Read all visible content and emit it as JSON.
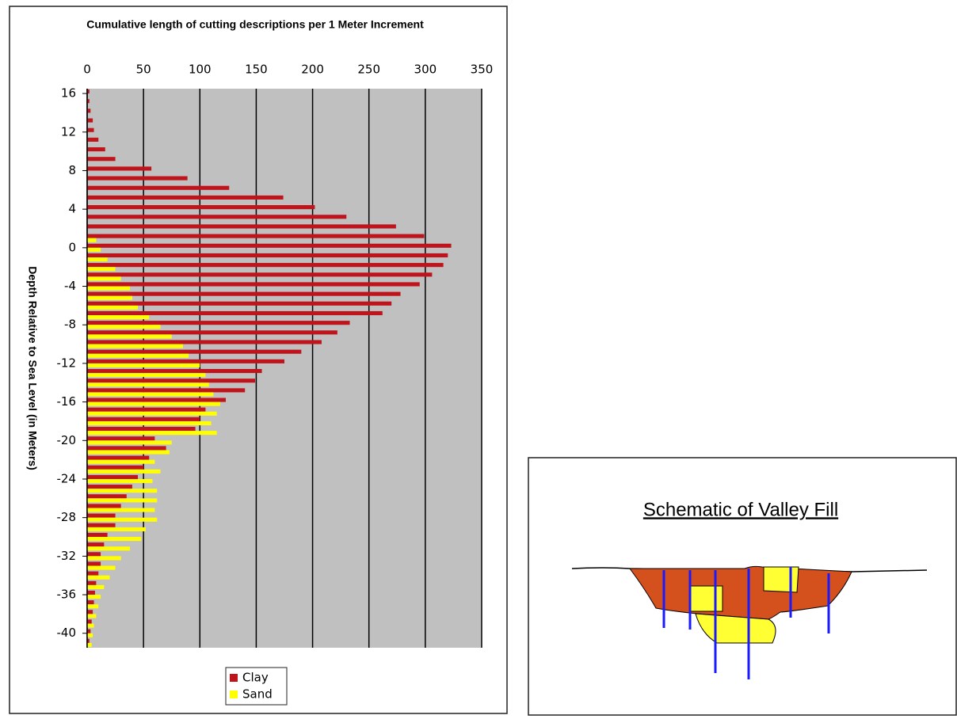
{
  "chart_data": {
    "type": "hbar",
    "title": "Cumulative length of cutting descriptions per 1 Meter Increment",
    "y_label": "Depth Relative to Sea Level (in Meters)",
    "y": [
      16,
      15,
      14,
      13,
      12,
      11,
      10,
      9,
      8,
      7,
      6,
      5,
      4,
      3,
      2,
      1,
      0,
      -1,
      -2,
      -3,
      -4,
      -5,
      -6,
      -7,
      -8,
      -9,
      -10,
      -11,
      -12,
      -13,
      -14,
      -15,
      -16,
      -17,
      -18,
      -19,
      -20,
      -21,
      -22,
      -23,
      -24,
      -25,
      -26,
      -27,
      -28,
      -29,
      -30,
      -31,
      -32,
      -33,
      -34,
      -35,
      -36,
      -37,
      -38,
      -39,
      -40,
      -41
    ],
    "series": [
      {
        "name": "Clay",
        "color": "#c0141c",
        "values": [
          2,
          2,
          3,
          5,
          6,
          10,
          16,
          25,
          57,
          89,
          126,
          174,
          202,
          230,
          274,
          299,
          323,
          320,
          316,
          306,
          295,
          278,
          270,
          262,
          233,
          222,
          208,
          190,
          175,
          155,
          149,
          140,
          123,
          105,
          100,
          96,
          60,
          70,
          55,
          50,
          45,
          40,
          35,
          30,
          25,
          25,
          18,
          15,
          12,
          12,
          10,
          8,
          7,
          6,
          5,
          4,
          3,
          2
        ]
      },
      {
        "name": "Sand",
        "color": "#ffff00",
        "values": [
          0,
          0,
          0,
          0,
          0,
          0,
          0,
          0,
          0,
          0,
          0,
          0,
          0,
          0,
          0,
          8,
          12,
          18,
          25,
          30,
          38,
          40,
          45,
          55,
          65,
          75,
          85,
          90,
          100,
          105,
          108,
          112,
          118,
          115,
          110,
          115,
          75,
          73,
          60,
          65,
          58,
          62,
          62,
          60,
          62,
          52,
          48,
          38,
          30,
          25,
          20,
          15,
          12,
          10,
          8,
          6,
          5,
          4
        ]
      }
    ],
    "xlim": [
      0,
      350
    ],
    "xticks": [
      0,
      50,
      100,
      150,
      200,
      250,
      300,
      350
    ],
    "ylim": [
      -41.5,
      16.5
    ],
    "yticks": [
      16,
      12,
      8,
      4,
      0,
      -4,
      -8,
      -12,
      -16,
      -20,
      -24,
      -28,
      -32,
      -36,
      -40
    ],
    "grid": true,
    "background": "#c0c0c0"
  },
  "schematic": {
    "title": "Schematic of Valley Fill"
  }
}
